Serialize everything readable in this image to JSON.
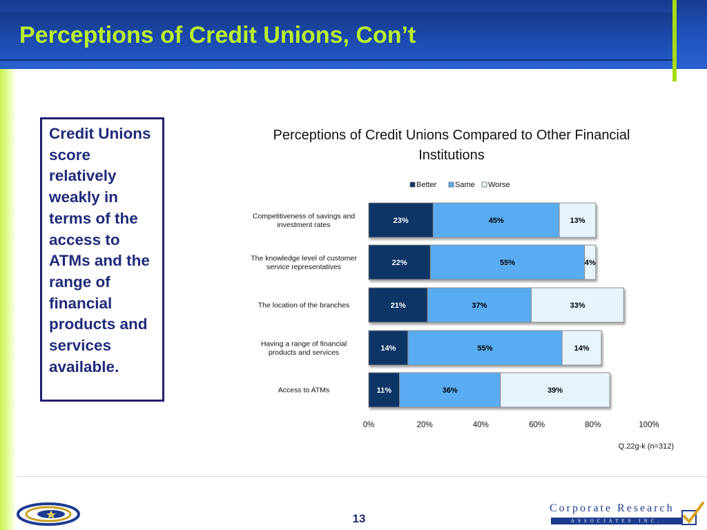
{
  "slide": {
    "title": "Perceptions of Credit Unions, Con’t",
    "callout": "Credit Unions score relatively weakly in terms of the access to ATMs and the range of financial products and services available.",
    "page_number": "13",
    "source_note": "Q.22g-k (n=312)",
    "logo_right_line1": "Corporate Research",
    "logo_right_line2": "ASSOCIATES INC."
  },
  "chart_data": {
    "type": "bar",
    "orientation": "horizontal",
    "stacked": true,
    "title": "Perceptions of Credit Unions Compared to Other Financial Institutions",
    "categories": [
      "Competitiveness of savings and investment rates",
      "The knowledge level of customer service representatives",
      "The location of the branches",
      "Having a range of financial products and services",
      "Access to ATMs"
    ],
    "series": [
      {
        "name": "Better",
        "values": [
          23,
          22,
          21,
          14,
          11
        ],
        "labels": [
          "23%",
          "22%",
          "21%",
          "14%",
          "11%"
        ],
        "color": "#0c3466"
      },
      {
        "name": "Same",
        "values": [
          45,
          55,
          37,
          55,
          36
        ],
        "labels": [
          "45%",
          "55%",
          "37%",
          "55%",
          "36%"
        ],
        "color": "#5aacf2"
      },
      {
        "name": "Worse",
        "values": [
          13,
          4,
          33,
          14,
          39
        ],
        "labels": [
          "13%",
          "4%",
          "33%",
          "14%",
          "39%"
        ],
        "color": "#e6f4fd"
      }
    ],
    "xlim": [
      0,
      100
    ],
    "x_ticks": [
      "0%",
      "20%",
      "40%",
      "60%",
      "80%",
      "100%"
    ],
    "legend_position": "top",
    "grid": false
  }
}
